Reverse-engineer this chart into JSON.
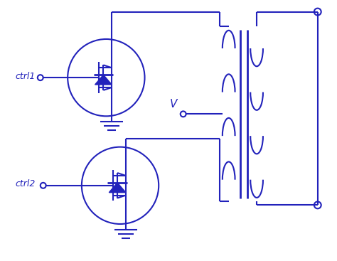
{
  "color": "#2222bb",
  "bg_color": "#ffffff",
  "line_width": 1.5,
  "ctrl1_label": "ctrl1",
  "ctrl2_label": "ctrl2",
  "V_label": "V",
  "fig_width": 4.74,
  "fig_height": 3.67,
  "dpi": 100
}
